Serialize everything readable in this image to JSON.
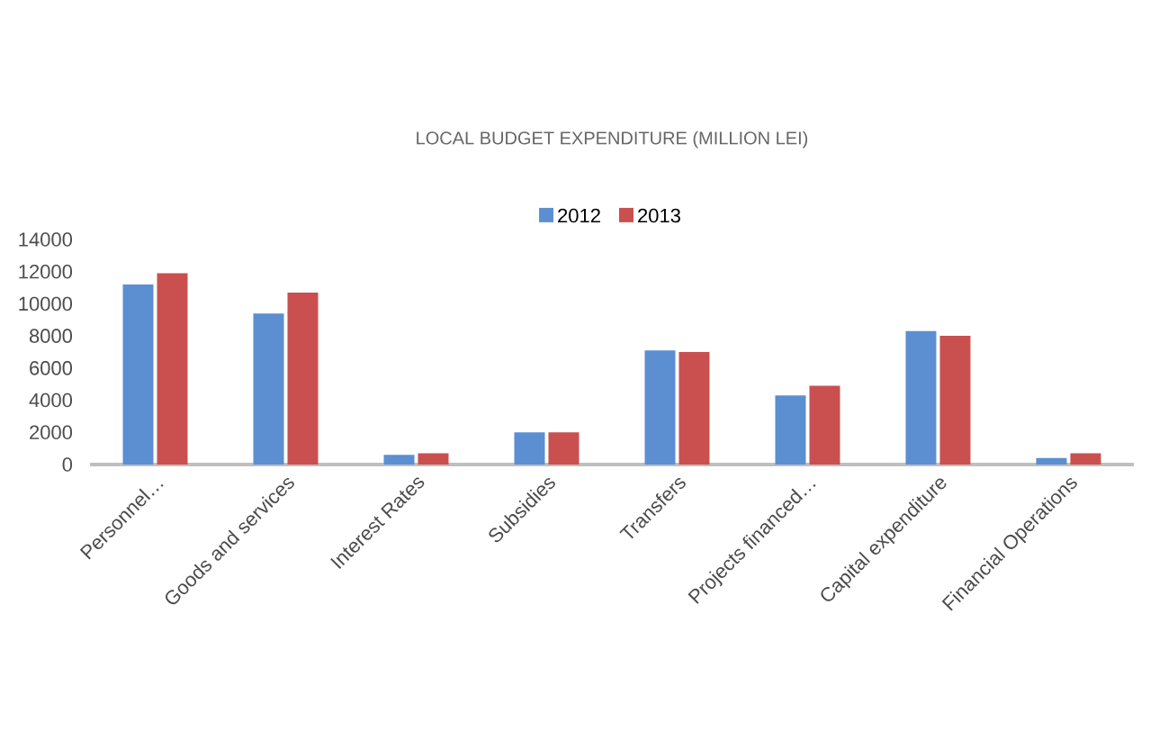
{
  "chart_data": {
    "type": "bar",
    "title": "LOCAL BUDGET EXPENDITURE (MILLION LEI)",
    "categories": [
      "Personnel…",
      "Goods and services",
      "Interest Rates",
      "Subsidies",
      "Transfers",
      "Projects financed…",
      "Capital expenditure",
      "Financial Operations"
    ],
    "series": [
      {
        "name": "2012",
        "color": "#5b8fd1",
        "values": [
          11200,
          9400,
          600,
          2000,
          7100,
          4300,
          8300,
          400
        ]
      },
      {
        "name": "2013",
        "color": "#c9504f",
        "values": [
          11900,
          10700,
          700,
          2000,
          7000,
          4900,
          8000,
          700
        ]
      }
    ],
    "ylim": [
      0,
      14000
    ],
    "yticks": [
      0,
      2000,
      4000,
      6000,
      8000,
      10000,
      12000,
      14000
    ],
    "legend": "top"
  }
}
